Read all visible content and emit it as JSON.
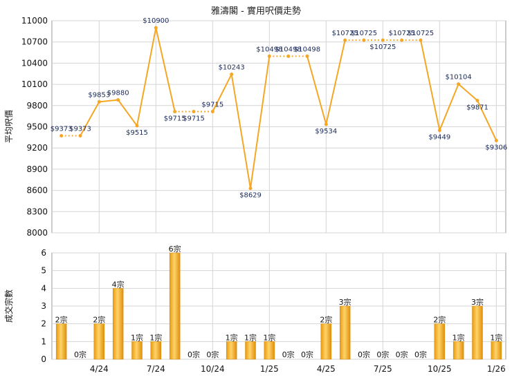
{
  "chart_data": [
    {
      "type": "line",
      "title": "雅濤閣 - 實用呎價走勢",
      "ylabel": "平均呎價",
      "ylim": [
        8000,
        11000
      ],
      "yticks": [
        8000,
        8300,
        8600,
        8900,
        9200,
        9500,
        9800,
        10100,
        10400,
        10700,
        11000
      ],
      "x_tick_labels": [
        "4/24",
        "7/24",
        "10/24",
        "1/25",
        "4/25",
        "7/25",
        "10/25",
        "1/26"
      ],
      "grid": true,
      "color": "#f5a623",
      "points": [
        {
          "value": 9373,
          "label": "$9373"
        },
        {
          "value": 9373,
          "label": "$9373"
        },
        {
          "value": 9853,
          "label": "$9853"
        },
        {
          "value": 9880,
          "label": "$9880"
        },
        {
          "value": 9515,
          "label": "$9515"
        },
        {
          "value": 10900,
          "label": "$10900"
        },
        {
          "value": 9715,
          "label": "$9715"
        },
        {
          "value": 9715,
          "label": "$9715"
        },
        {
          "value": 9715,
          "label": "$9715"
        },
        {
          "value": 10243,
          "label": "$10243"
        },
        {
          "value": 8629,
          "label": "$8629"
        },
        {
          "value": 10498,
          "label": "$10498"
        },
        {
          "value": 10498,
          "label": "$10498"
        },
        {
          "value": 10498,
          "label": "$10498"
        },
        {
          "value": 9534,
          "label": "$9534"
        },
        {
          "value": 10725,
          "label": "$10725"
        },
        {
          "value": 10725,
          "label": "$10725"
        },
        {
          "value": 10725,
          "label": "$10725"
        },
        {
          "value": 10725,
          "label": "$10725"
        },
        {
          "value": 10725,
          "label": "$10725"
        },
        {
          "value": 9449,
          "label": "$9449"
        },
        {
          "value": 10104,
          "label": "$10104"
        },
        {
          "value": 9871,
          "label": "$9871"
        },
        {
          "value": 9306,
          "label": "$9306"
        }
      ]
    },
    {
      "type": "bar",
      "ylabel": "成交宗數",
      "ylim": [
        0,
        6
      ],
      "yticks": [
        0,
        1,
        2,
        3,
        4,
        5,
        6
      ],
      "x_tick_labels": [
        "4/24",
        "7/24",
        "10/24",
        "1/25",
        "4/25",
        "7/25",
        "10/25",
        "1/26"
      ],
      "grid": true,
      "color": "#f0a020",
      "bars": [
        {
          "value": 2,
          "label": "2宗"
        },
        {
          "value": 0,
          "label": "0宗"
        },
        {
          "value": 2,
          "label": "2宗"
        },
        {
          "value": 4,
          "label": "4宗"
        },
        {
          "value": 1,
          "label": "1宗"
        },
        {
          "value": 1,
          "label": "1宗"
        },
        {
          "value": 6,
          "label": "6宗"
        },
        {
          "value": 0,
          "label": "0宗"
        },
        {
          "value": 0,
          "label": "0宗"
        },
        {
          "value": 1,
          "label": "1宗"
        },
        {
          "value": 1,
          "label": "1宗"
        },
        {
          "value": 1,
          "label": "1宗"
        },
        {
          "value": 0,
          "label": "0宗"
        },
        {
          "value": 0,
          "label": "0宗"
        },
        {
          "value": 2,
          "label": "2宗"
        },
        {
          "value": 3,
          "label": "3宗"
        },
        {
          "value": 0,
          "label": "0宗"
        },
        {
          "value": 0,
          "label": "0宗"
        },
        {
          "value": 0,
          "label": "0宗"
        },
        {
          "value": 0,
          "label": "0宗"
        },
        {
          "value": 2,
          "label": "2宗"
        },
        {
          "value": 1,
          "label": "1宗"
        },
        {
          "value": 3,
          "label": "3宗"
        },
        {
          "value": 1,
          "label": "1宗"
        }
      ]
    }
  ]
}
